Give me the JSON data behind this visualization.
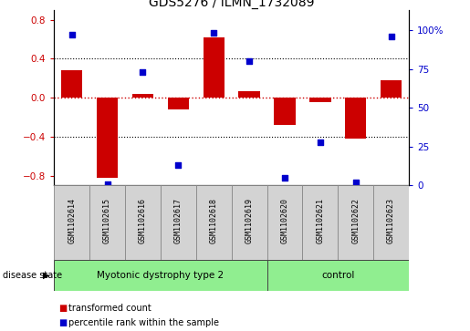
{
  "title": "GDS5276 / ILMN_1732089",
  "samples": [
    "GSM1102614",
    "GSM1102615",
    "GSM1102616",
    "GSM1102617",
    "GSM1102618",
    "GSM1102619",
    "GSM1102620",
    "GSM1102621",
    "GSM1102622",
    "GSM1102623"
  ],
  "red_bars": [
    0.28,
    -0.82,
    0.04,
    -0.12,
    0.62,
    0.07,
    -0.28,
    -0.05,
    -0.42,
    0.18
  ],
  "blue_dots": [
    97,
    1,
    73,
    13,
    98,
    80,
    5,
    28,
    2,
    96
  ],
  "ylim_left": [
    -0.9,
    0.9
  ],
  "ylim_right": [
    0,
    113
  ],
  "yticks_left": [
    -0.8,
    -0.4,
    0.0,
    0.4,
    0.8
  ],
  "yticks_right": [
    0,
    25,
    50,
    75,
    100
  ],
  "ytick_labels_right": [
    "0",
    "25",
    "50",
    "75",
    "100%"
  ],
  "disease_groups": [
    {
      "label": "Myotonic dystrophy type 2",
      "start": 0,
      "end": 6,
      "color": "#90EE90"
    },
    {
      "label": "control",
      "start": 6,
      "end": 10,
      "color": "#90EE90"
    }
  ],
  "bar_color": "#cc0000",
  "dot_color": "#0000cc",
  "zero_line_color": "#cc0000",
  "grid_color": "#000000",
  "bg_color": "#ffffff",
  "label_box_color": "#d3d3d3",
  "legend_red_label": "transformed count",
  "legend_blue_label": "percentile rank within the sample",
  "disease_state_label": "disease state"
}
